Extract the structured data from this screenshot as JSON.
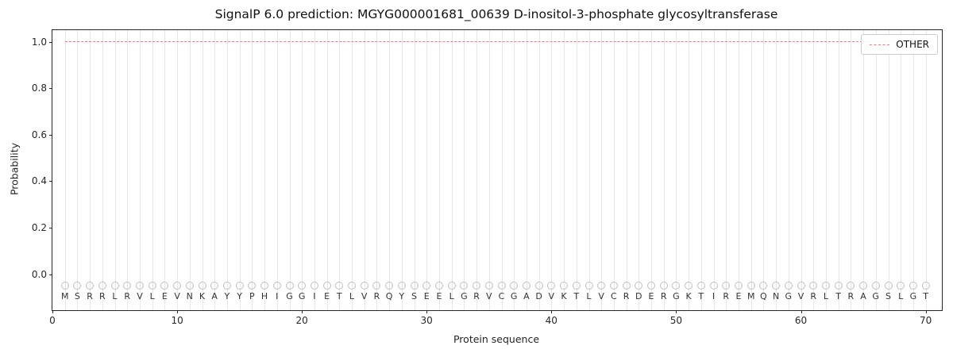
{
  "figure": {
    "title": "SignalP 6.0 prediction: MGYG000001681_00639 D-inositol-3-phosphate glycosyltransferase",
    "xlabel": "Protein sequence",
    "ylabel": "Probability",
    "legend": {
      "position": "upper right",
      "entries": [
        {
          "label": "OTHER",
          "linestyle": "dashed",
          "color": "#ed7d7d"
        }
      ]
    }
  },
  "chart_data": {
    "type": "line",
    "title": "SignalP 6.0 prediction: MGYG000001681_00639 D-inositol-3-phosphate glycosyltransferase",
    "xlabel": "Protein sequence",
    "ylabel": "Probability",
    "xlim": [
      0,
      71.3
    ],
    "ylim": [
      -0.155,
      1.05
    ],
    "xticks": [
      0,
      10,
      20,
      30,
      40,
      50,
      60,
      70
    ],
    "yticks": [
      0.0,
      0.2,
      0.4,
      0.6,
      0.8,
      1.0
    ],
    "grid": "vertical-gridline-per-residue",
    "gridline_color": "#e7e7e7",
    "legend_position": "upper right",
    "sequence": "MSRRLRVLEVNKAYYPHIGGIETLVRQYSEELGRVCGADVKTLVCRDERGKTIREMQNGVRLTRAGSLGT",
    "x": [
      1,
      2,
      3,
      4,
      5,
      6,
      7,
      8,
      9,
      10,
      11,
      12,
      13,
      14,
      15,
      16,
      17,
      18,
      19,
      20,
      21,
      22,
      23,
      24,
      25,
      26,
      27,
      28,
      29,
      30,
      31,
      32,
      33,
      34,
      35,
      36,
      37,
      38,
      39,
      40,
      41,
      42,
      43,
      44,
      45,
      46,
      47,
      48,
      49,
      50,
      51,
      52,
      53,
      54,
      55,
      56,
      57,
      58,
      59,
      60,
      61,
      62,
      63,
      64,
      65,
      66,
      67,
      68,
      69,
      70
    ],
    "series": [
      {
        "name": "OTHER",
        "color": "#ed7d7d",
        "linestyle": "dashed",
        "values": [
          1.0,
          1.0,
          1.0,
          1.0,
          1.0,
          1.0,
          1.0,
          1.0,
          1.0,
          1.0,
          1.0,
          1.0,
          1.0,
          1.0,
          1.0,
          1.0,
          1.0,
          1.0,
          1.0,
          1.0,
          1.0,
          1.0,
          1.0,
          1.0,
          1.0,
          1.0,
          1.0,
          1.0,
          1.0,
          1.0,
          1.0,
          1.0,
          1.0,
          1.0,
          1.0,
          1.0,
          1.0,
          1.0,
          1.0,
          1.0,
          1.0,
          1.0,
          1.0,
          1.0,
          1.0,
          1.0,
          1.0,
          1.0,
          1.0,
          1.0,
          1.0,
          1.0,
          1.0,
          1.0,
          1.0,
          1.0,
          1.0,
          1.0,
          1.0,
          1.0,
          1.0,
          1.0,
          1.0,
          1.0,
          1.0,
          1.0,
          1.0,
          1.0,
          1.0,
          1.0
        ]
      }
    ],
    "marker_row": {
      "y": -0.05,
      "marker": "open-circle",
      "color": "#bfbfbf"
    }
  }
}
